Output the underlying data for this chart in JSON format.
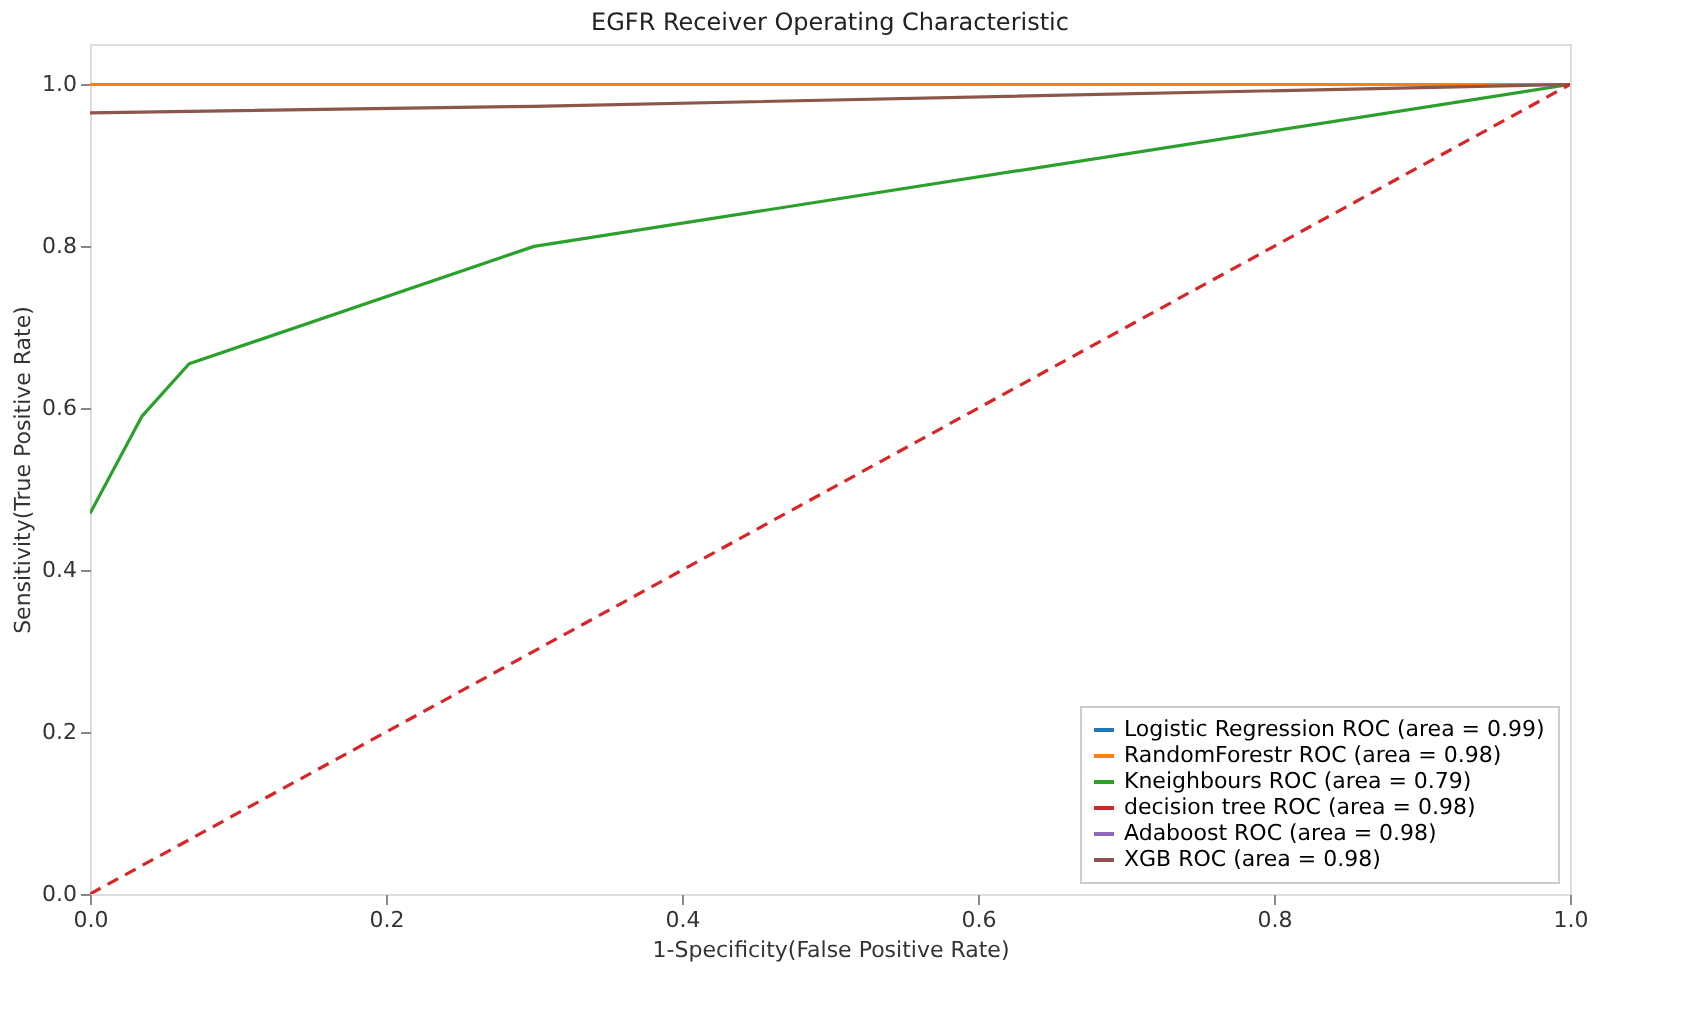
{
  "chart_data": {
    "type": "line",
    "title": "EGFR Receiver Operating Characteristic",
    "xlabel": "1-Specificity(False Positive Rate)",
    "ylabel": "Sensitivity(True Positive Rate)",
    "xlim": [
      0,
      1
    ],
    "ylim": [
      0,
      1.05
    ],
    "xticks": [
      {
        "value": 0,
        "label": "0.0"
      },
      {
        "value": 0.2,
        "label": "0.2"
      },
      {
        "value": 0.4,
        "label": "0.4"
      },
      {
        "value": 0.6,
        "label": "0.6"
      },
      {
        "value": 0.8,
        "label": "0.8"
      },
      {
        "value": 1,
        "label": "1.0"
      }
    ],
    "yticks": [
      {
        "value": 0,
        "label": "0.0"
      },
      {
        "value": 0.2,
        "label": "0.2"
      },
      {
        "value": 0.4,
        "label": "0.4"
      },
      {
        "value": 0.6,
        "label": "0.6"
      },
      {
        "value": 0.8,
        "label": "0.8"
      },
      {
        "value": 1,
        "label": "1.0"
      }
    ],
    "grid": false,
    "legend": "bottom right",
    "line_style": "solid",
    "series": [
      {
        "name": "Logistic Regression ROC (area = 0.99)",
        "color": "#1f77b4"
      },
      {
        "name": "RandomForestr ROC (area = 0.98)",
        "color": "#ff7f0e",
        "x": [
          0,
          1
        ],
        "values": [
          1.0,
          1.0
        ]
      },
      {
        "name": "Kneighbours ROC (area = 0.79)",
        "color": "#2ca02c",
        "x": [
          0,
          0.035,
          0.067,
          0.3,
          1
        ],
        "values": [
          0.47,
          0.59,
          0.655,
          0.8,
          1.0
        ]
      },
      {
        "name": "decision tree ROC (area = 0.98)",
        "color": "#d62728"
      },
      {
        "name": "Adaboost ROC (area = 0.98)",
        "color": "#9467bd"
      },
      {
        "name": "XGB ROC (area = 0.98)",
        "color": "#8c564b",
        "x": [
          0,
          0.3,
          1
        ],
        "values": [
          0.965,
          0.973,
          1.0
        ]
      },
      {
        "color": "#d62728",
        "line_style": "dashed",
        "x": [
          0,
          1
        ],
        "values": [
          0,
          1
        ]
      }
    ]
  }
}
